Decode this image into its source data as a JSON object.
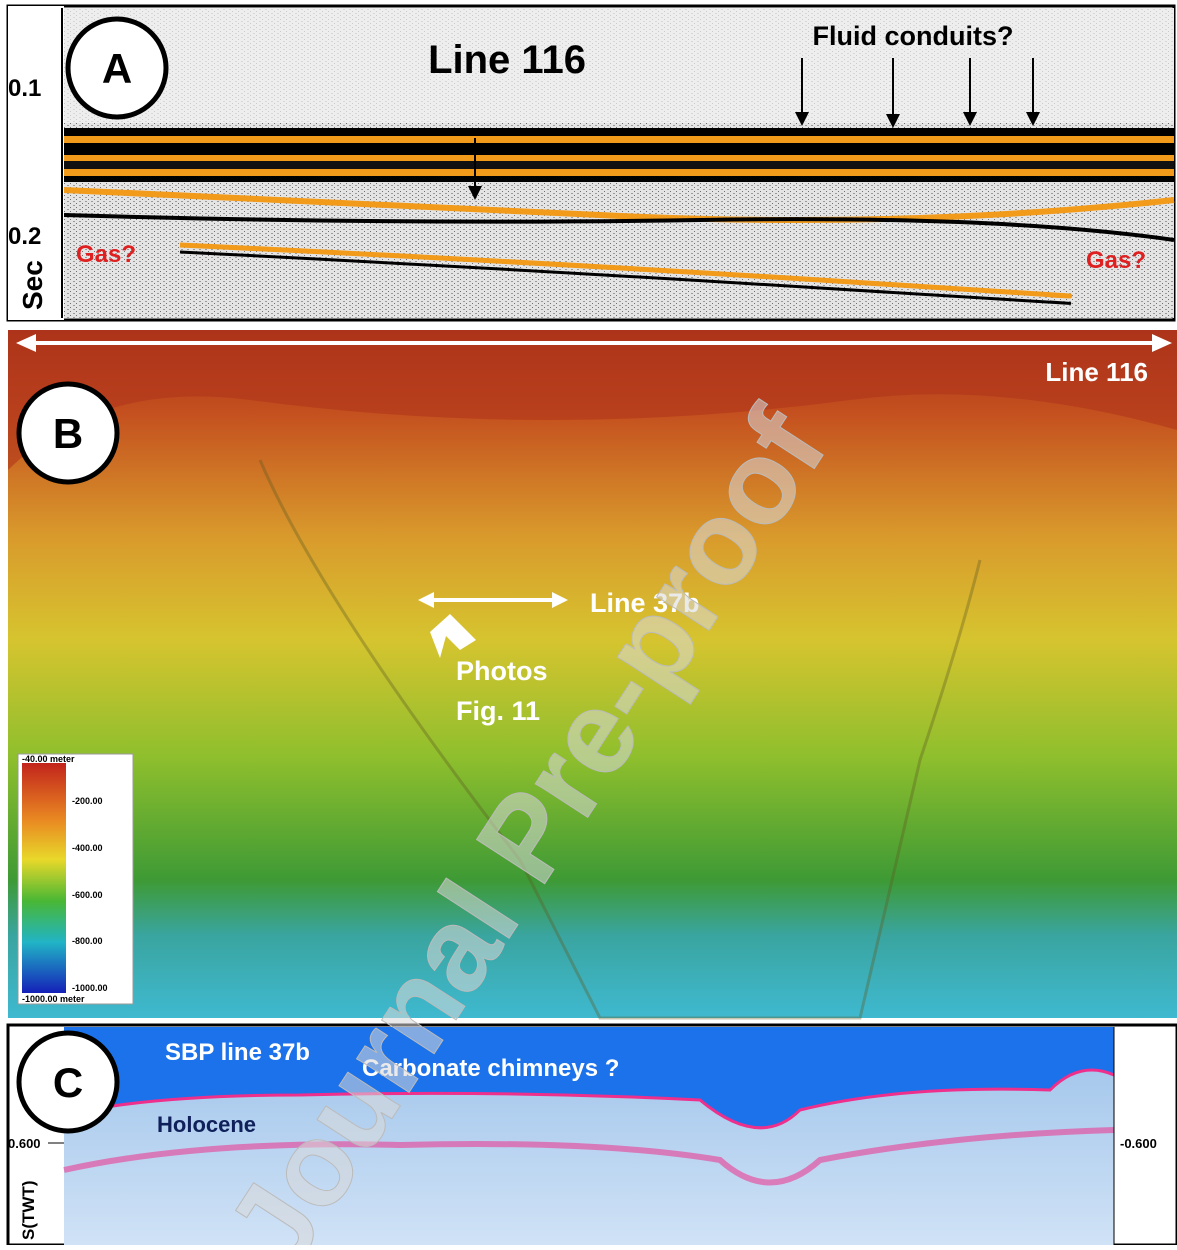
{
  "panels": [
    {
      "label": "A",
      "title": "Line 116",
      "annotation": "Fluid conduits?",
      "axis_ticks": [
        "0.1",
        "0.2"
      ],
      "axis_label": "Sec",
      "gas_labels": [
        "Gas?",
        "Gas?"
      ]
    },
    {
      "label": "B",
      "line_label": "Line 116",
      "transect": "Line 37b",
      "photo_note": [
        "Photos",
        "Fig. 11"
      ],
      "legend": {
        "top": "-40.00 meter",
        "ticks": [
          "-200.00",
          "-400.00",
          "-600.00",
          "-800.00",
          "-1000.00"
        ],
        "bottom": "-1000.00 meter"
      }
    },
    {
      "label": "C",
      "title": "SBP line 37b",
      "annotation": "Carbonate chimneys ?",
      "unit": "Holocene",
      "left_tick": "0.600",
      "right_tick": "-0.600",
      "axis_label": "S(TWT)"
    }
  ],
  "watermark": "Journal Pre-proof"
}
